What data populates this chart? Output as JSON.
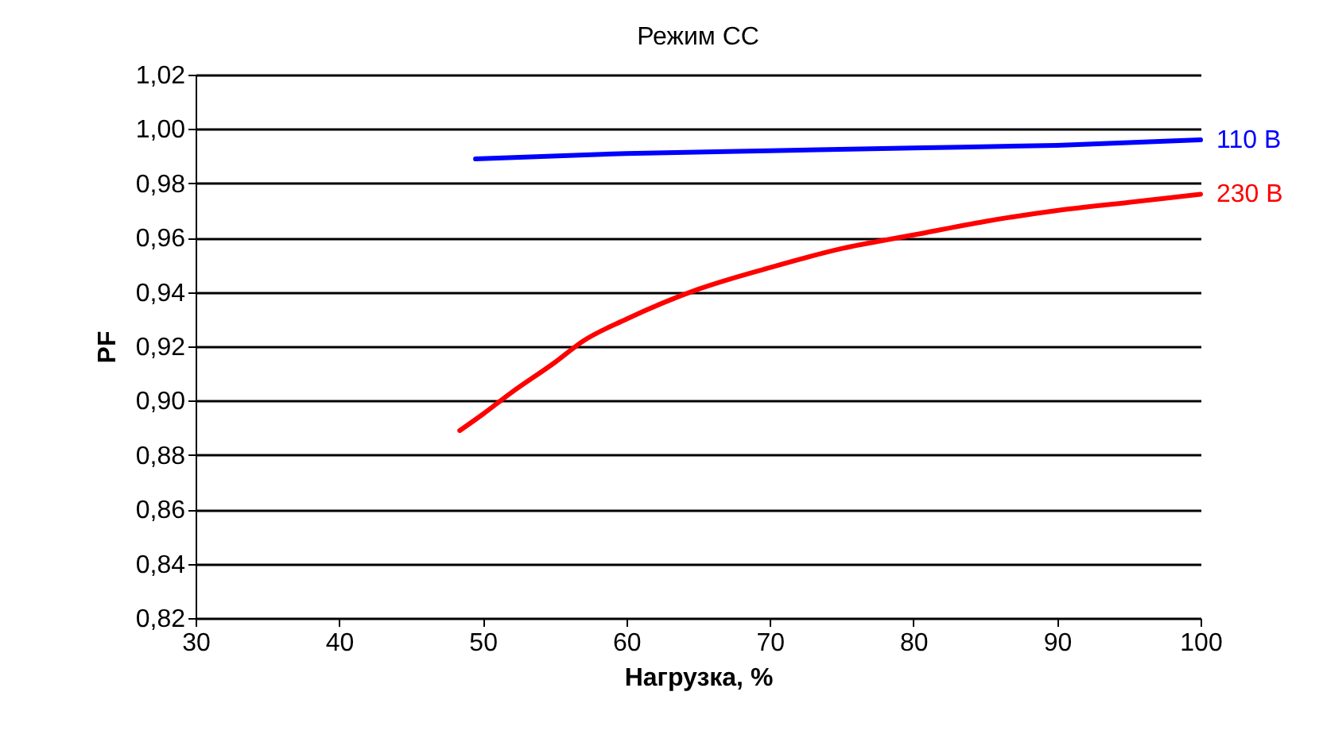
{
  "chart_data": {
    "type": "line",
    "title": "Режим СС",
    "xlabel": "Нагрузка, %",
    "ylabel": "PF",
    "xlim": [
      30,
      100
    ],
    "xticks": [
      30,
      40,
      50,
      60,
      70,
      80,
      90,
      100
    ],
    "ylim": [
      0.82,
      1.02
    ],
    "yticks": [
      {
        "value": 0.82,
        "label": "0,82"
      },
      {
        "value": 0.84,
        "label": "0,84"
      },
      {
        "value": 0.86,
        "label": "0,86"
      },
      {
        "value": 0.88,
        "label": "0,88"
      },
      {
        "value": 0.9,
        "label": "0,90"
      },
      {
        "value": 0.92,
        "label": "0,92"
      },
      {
        "value": 0.94,
        "label": "0,94"
      },
      {
        "value": 0.96,
        "label": "0,96"
      },
      {
        "value": 0.98,
        "label": "0,98"
      },
      {
        "value": 1.0,
        "label": "1,00"
      },
      {
        "value": 1.02,
        "label": "1,02"
      }
    ],
    "grid": "y",
    "legend": false,
    "marker": "none",
    "line_style": "solid",
    "series": [
      {
        "name": "110 В",
        "color": "#0000ff",
        "x": [
          49.5,
          60,
          70,
          80,
          90,
          100
        ],
        "values": [
          0.989,
          0.991,
          0.992,
          0.993,
          0.994,
          0.996
        ]
      },
      {
        "name": "230 В",
        "color": "#ff0000",
        "x": [
          48.4,
          50,
          52,
          55,
          57,
          60,
          65,
          70,
          75,
          80,
          85,
          90,
          95,
          100
        ],
        "values": [
          0.889,
          0.895,
          0.903,
          0.914,
          0.922,
          0.93,
          0.941,
          0.949,
          0.956,
          0.961,
          0.966,
          0.97,
          0.973,
          0.976
        ]
      }
    ]
  }
}
